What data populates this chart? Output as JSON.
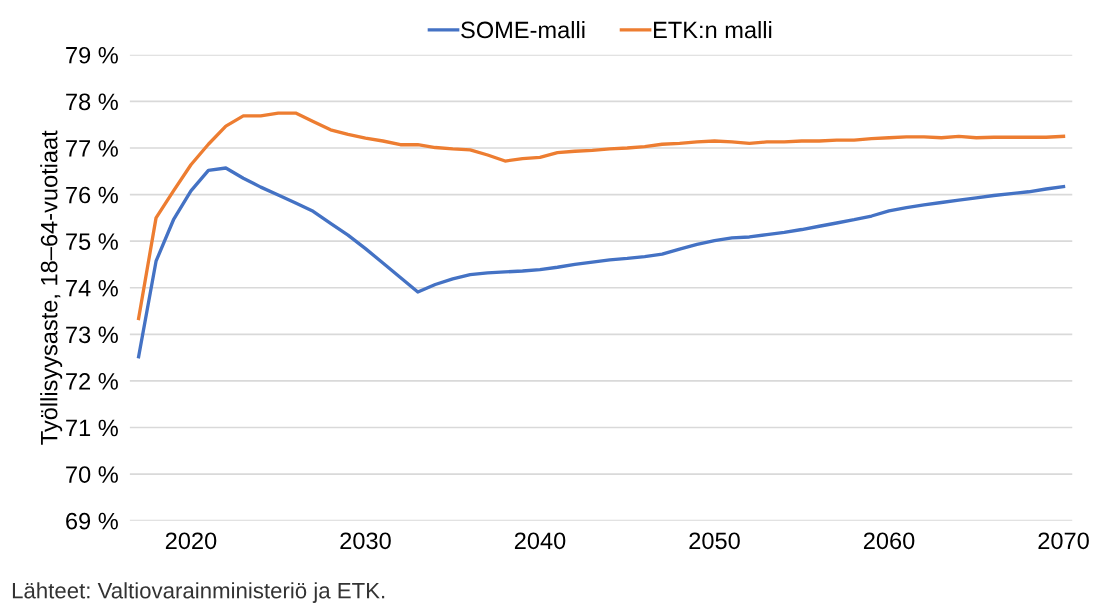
{
  "chart_data": {
    "type": "line",
    "ylabel": "Työllisyysaste, 18–64-vuotiaat",
    "x": [
      2017,
      2018,
      2019,
      2020,
      2021,
      2022,
      2023,
      2024,
      2025,
      2026,
      2027,
      2028,
      2029,
      2030,
      2031,
      2032,
      2033,
      2034,
      2035,
      2036,
      2037,
      2038,
      2039,
      2040,
      2041,
      2042,
      2043,
      2044,
      2045,
      2046,
      2047,
      2048,
      2049,
      2050,
      2051,
      2052,
      2053,
      2054,
      2055,
      2056,
      2057,
      2058,
      2059,
      2060,
      2061,
      2062,
      2063,
      2064,
      2065,
      2066,
      2067,
      2068,
      2069,
      2070
    ],
    "series": [
      {
        "name": "SOME-malli",
        "color": "#4472c4",
        "values": [
          72.52,
          74.57,
          75.46,
          76.08,
          76.52,
          76.57,
          76.35,
          76.16,
          75.99,
          75.82,
          75.64,
          75.38,
          75.13,
          74.84,
          74.53,
          74.22,
          73.91,
          74.07,
          74.19,
          74.28,
          74.32,
          74.34,
          74.36,
          74.39,
          74.44,
          74.5,
          74.55,
          74.6,
          74.63,
          74.67,
          74.72,
          74.83,
          74.93,
          75.01,
          75.07,
          75.09,
          75.14,
          75.19,
          75.25,
          75.32,
          75.39,
          75.46,
          75.54,
          75.65,
          75.72,
          75.78,
          75.83,
          75.88,
          75.93,
          75.98,
          76.02,
          76.06,
          76.12,
          76.17
        ]
      },
      {
        "name": "ETK:n malli",
        "color": "#ed7d31",
        "values": [
          73.34,
          75.5,
          76.08,
          76.64,
          77.08,
          77.47,
          77.69,
          77.69,
          77.75,
          77.75,
          77.57,
          77.39,
          77.29,
          77.21,
          77.15,
          77.07,
          77.07,
          77.01,
          76.98,
          76.96,
          76.85,
          76.72,
          76.77,
          76.8,
          76.9,
          76.93,
          76.95,
          76.98,
          77.0,
          77.03,
          77.08,
          77.1,
          77.13,
          77.15,
          77.13,
          77.1,
          77.13,
          77.13,
          77.15,
          77.15,
          77.17,
          77.17,
          77.2,
          77.22,
          77.24,
          77.24,
          77.22,
          77.25,
          77.22,
          77.23,
          77.23,
          77.23,
          77.23,
          77.25
        ]
      }
    ],
    "xlim": [
      2016.5,
      2070.5
    ],
    "xticks": [
      2020,
      2030,
      2040,
      2050,
      2060,
      2070
    ],
    "ylim": [
      69,
      79
    ],
    "yticks": [
      {
        "value": 69,
        "label": "69 %"
      },
      {
        "value": 70,
        "label": "70 %"
      },
      {
        "value": 71,
        "label": "71 %"
      },
      {
        "value": 72,
        "label": "72 %"
      },
      {
        "value": 73,
        "label": "73 %"
      },
      {
        "value": 74,
        "label": "74 %"
      },
      {
        "value": 75,
        "label": "75 %"
      },
      {
        "value": 76,
        "label": "76 %"
      },
      {
        "value": 77,
        "label": "77 %"
      },
      {
        "value": 78,
        "label": "78 %"
      },
      {
        "value": 79,
        "label": "79 %"
      }
    ],
    "grid": "y",
    "legend": "top",
    "marker": "none",
    "line_style": "solid",
    "annotations": [
      "Lähteet: Valtiovarainministeriö ja ETK."
    ]
  }
}
